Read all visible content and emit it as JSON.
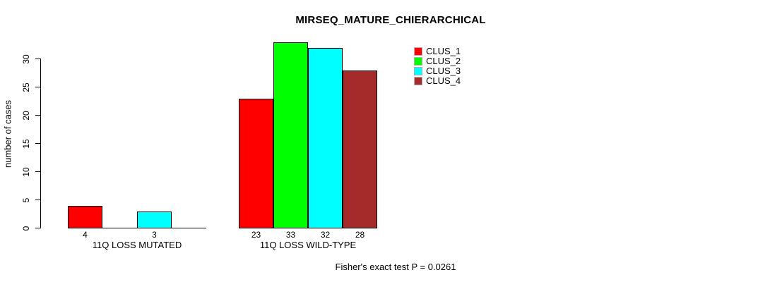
{
  "chart_data": {
    "type": "bar",
    "title": "MIRSEQ_MATURE_CHIERARCHICAL",
    "ylabel": "number of cases",
    "xlabel": "",
    "yticks": [
      0,
      5,
      10,
      15,
      20,
      25,
      30
    ],
    "ylim": [
      0,
      33
    ],
    "grid": false,
    "legend_position": "top-right",
    "categories": [
      "11Q LOSS MUTATED",
      "11Q LOSS WILD-TYPE"
    ],
    "series": [
      {
        "name": "CLUS_1",
        "color": "#ff0000",
        "values": [
          4,
          23
        ]
      },
      {
        "name": "CLUS_2",
        "color": "#00ff00",
        "values": [
          0,
          33
        ]
      },
      {
        "name": "CLUS_3",
        "color": "#00ffff",
        "values": [
          3,
          32
        ]
      },
      {
        "name": "CLUS_4",
        "color": "#a52a2a",
        "values": [
          0,
          28
        ]
      }
    ],
    "bar_value_labels": {
      "show": true,
      "hide_zero": true
    },
    "annotation": "Fisher's exact test P = 0.0261"
  }
}
